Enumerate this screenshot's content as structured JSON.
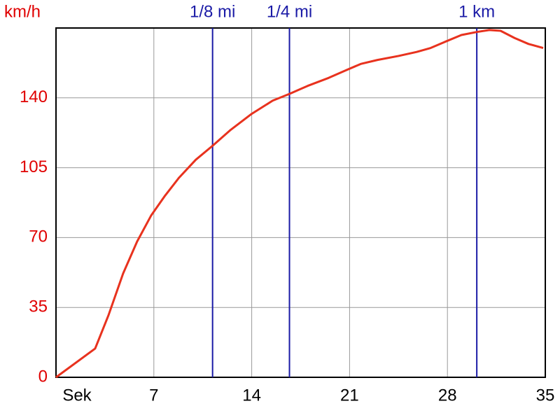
{
  "chart_data": {
    "type": "line",
    "y_label": "km/h",
    "x": [
      0,
      2.8,
      3.75,
      4.8,
      5.8,
      6.8,
      7.8,
      8.8,
      10,
      11.2,
      12.5,
      14,
      15.5,
      16.7,
      18,
      19.5,
      20.8,
      21.8,
      23,
      24.5,
      25.8,
      26.8,
      27.8,
      29,
      30.1,
      31,
      31.8,
      32.8,
      33.8,
      34.85
    ],
    "series": [
      {
        "name": "km/h",
        "color": "#e8321e",
        "values": [
          0,
          14.4,
          31,
          52,
          68,
          81,
          91,
          100,
          109,
          116,
          124,
          132,
          138.6,
          142,
          146,
          150,
          154,
          157,
          159,
          161,
          163,
          165,
          168,
          171.5,
          173,
          174,
          173.6,
          170,
          167,
          165
        ]
      }
    ],
    "xlim": [
      0,
      35
    ],
    "xticks": [
      {
        "value": 0,
        "label": "Sek"
      },
      7,
      14,
      21,
      28,
      35
    ],
    "ylim": [
      0,
      175
    ],
    "yticks": [
      0,
      35,
      70,
      105,
      140
    ],
    "grid": true,
    "markers": [
      {
        "label": "1/8 mi",
        "x": 11.2
      },
      {
        "label": "1/4 mi",
        "x": 16.7
      },
      {
        "label": "1 km",
        "x": 30.1
      }
    ],
    "marker_color": "#1a1aa6"
  }
}
